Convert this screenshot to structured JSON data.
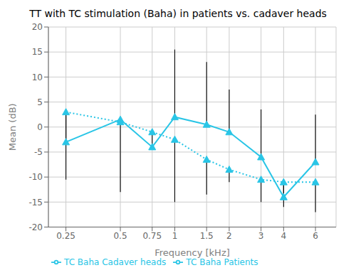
{
  "chart_data": {
    "type": "line",
    "title": "TT with TC stimulation (Baha) in patients vs. cadaver heads",
    "x_label": "Frequency [kHz]",
    "y_label": "Mean (dB)",
    "log": "x",
    "grid": true,
    "legend": "lower left",
    "xlim": [
      0.2,
      7.8
    ],
    "ylim": [
      -20,
      20
    ],
    "xticks": [
      0.25,
      0.5,
      0.75,
      1,
      1.5,
      2,
      3,
      4,
      6
    ],
    "yticks": [
      -20,
      -15,
      -10,
      -5,
      0,
      5,
      10,
      15,
      20
    ],
    "x": [
      0.25,
      0.5,
      0.75,
      1,
      1.5,
      2,
      3,
      4,
      6
    ],
    "series": [
      {
        "name": "TC Baha Cadaver heads",
        "color": "#29c5e6",
        "line_style": "dotted",
        "marker": "triangle",
        "values": [
          3.0,
          1.0,
          -1.0,
          -2.5,
          -6.5,
          -8.5,
          -10.5,
          -11.0,
          -11.0
        ],
        "err_up": [
          0.0,
          0.0,
          0.0,
          0.0,
          0.0,
          0.0,
          0.0,
          0.0,
          0.0
        ],
        "err_down": [
          13.5,
          14.0,
          3.5,
          12.5,
          7.0,
          2.5,
          4.5,
          5.0,
          6.0
        ]
      },
      {
        "name": "TC Baha Patients",
        "color": "#29c5e6",
        "line_style": "solid",
        "marker": "triangle",
        "values": [
          -3.0,
          1.5,
          -4.0,
          2.0,
          0.5,
          -1.0,
          -6.0,
          -14.0,
          -7.0
        ],
        "err_up": [
          6.5,
          0.0,
          0.0,
          13.5,
          12.5,
          8.5,
          9.5,
          3.5,
          9.5
        ],
        "err_down": [
          0.0,
          0.0,
          0.0,
          0.0,
          0.0,
          0.0,
          0.0,
          0.0,
          0.0
        ]
      }
    ]
  }
}
